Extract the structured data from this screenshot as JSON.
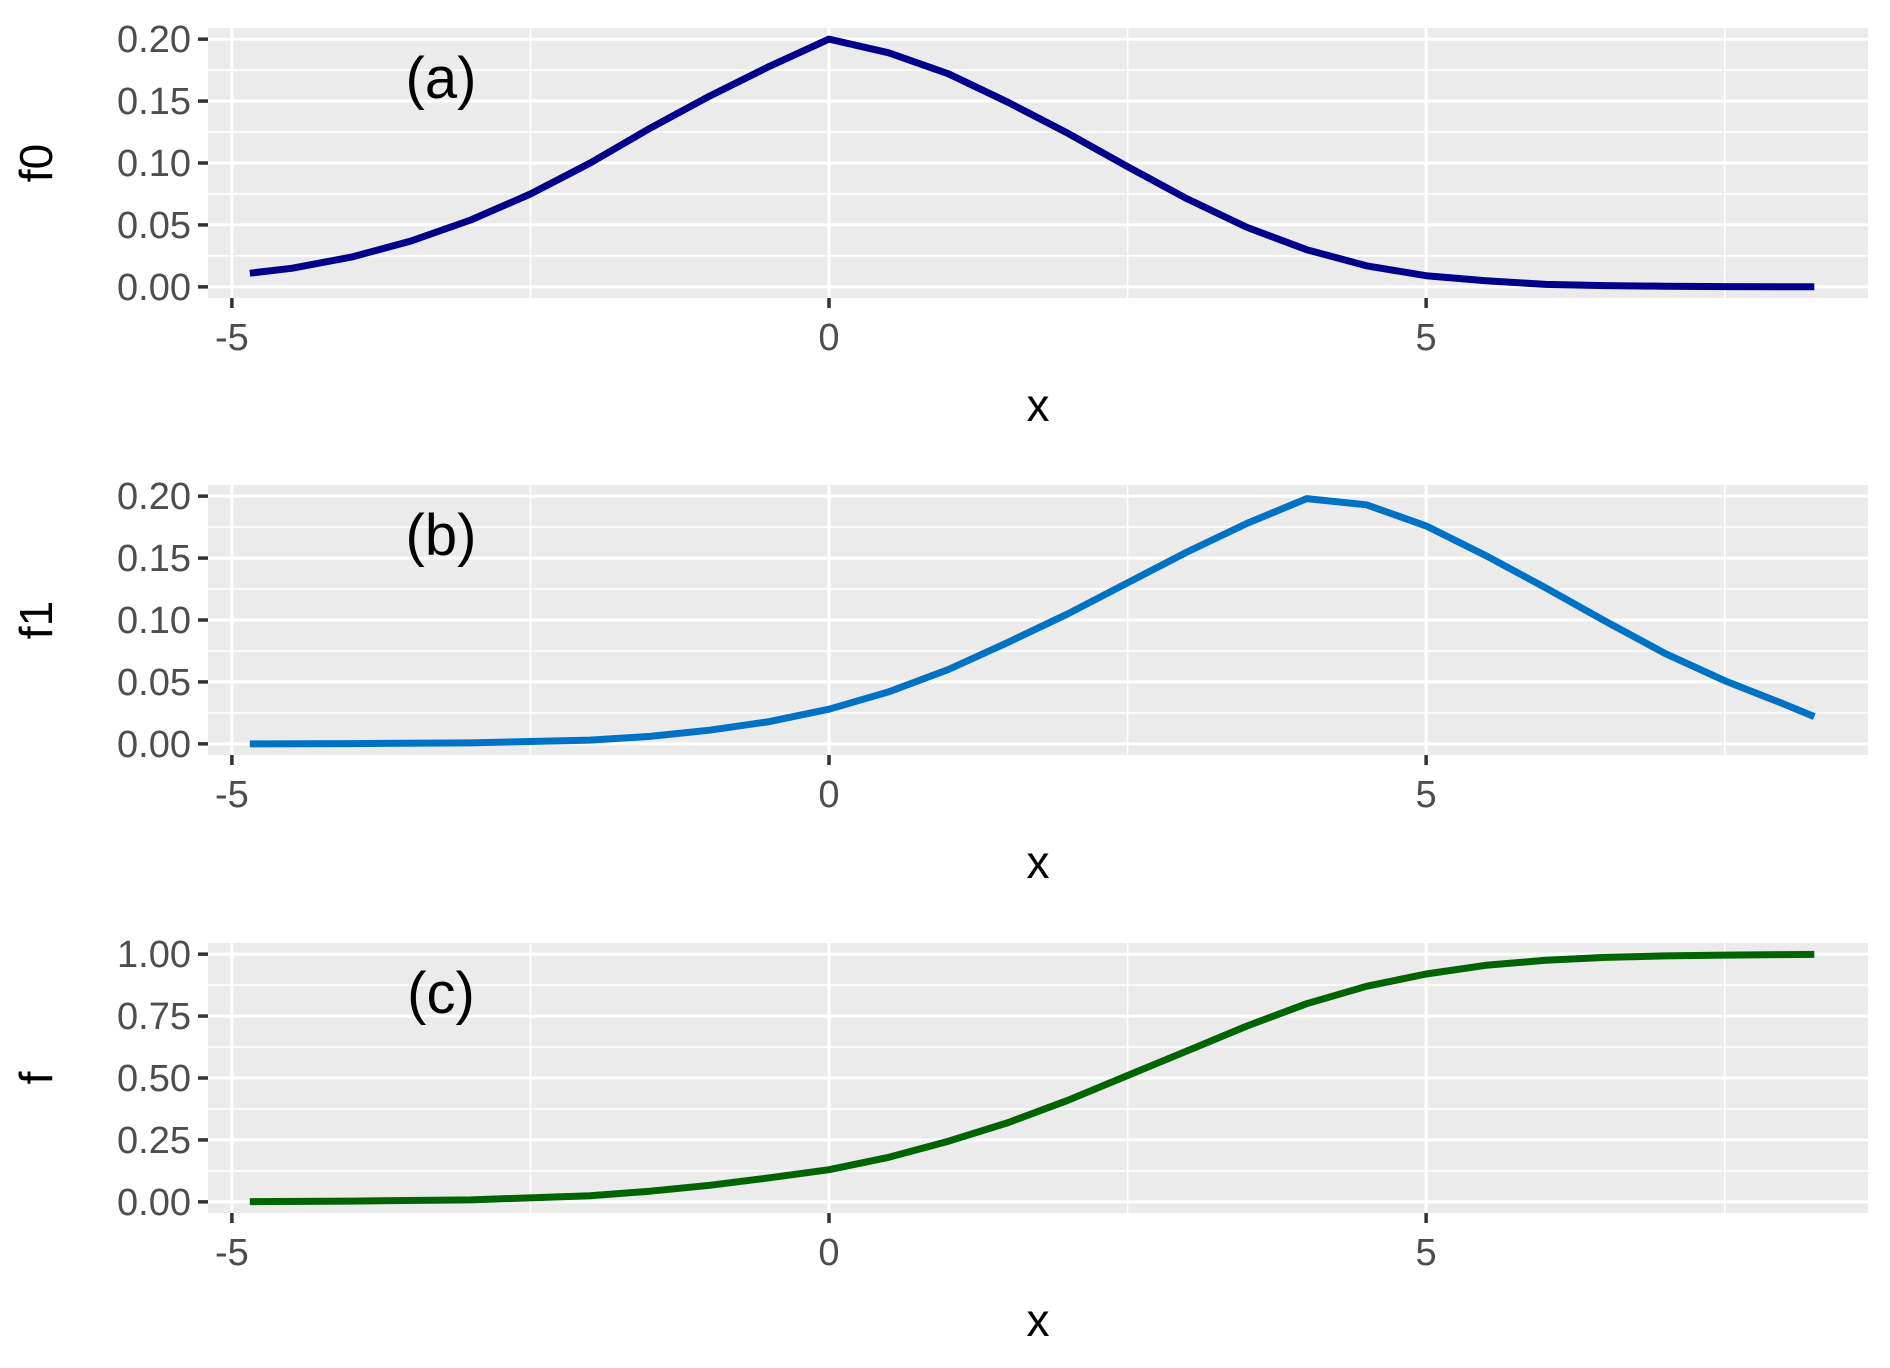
{
  "chart_data": [
    {
      "type": "line",
      "annotation": "(a)",
      "xlabel": "x",
      "ylabel": "f0",
      "xlim": [
        -5.2,
        8.7
      ],
      "ylim": [
        -0.009,
        0.209
      ],
      "x_ticks": [
        -5,
        0,
        5
      ],
      "x_tick_labels": [
        "-5",
        "0",
        "5"
      ],
      "y_ticks": [
        0.0,
        0.05,
        0.1,
        0.15,
        0.2
      ],
      "y_tick_labels": [
        "0.00",
        "0.05",
        "0.10",
        "0.15",
        "0.20"
      ],
      "grid": true,
      "series": [
        {
          "color": "#00008B",
          "x": [
            -4.85,
            -4.5,
            -4.0,
            -3.5,
            -3.0,
            -2.5,
            -2.0,
            -1.5,
            -1.0,
            -0.5,
            0.0,
            0.5,
            1.0,
            1.5,
            2.0,
            2.5,
            3.0,
            3.5,
            4.0,
            4.5,
            5.0,
            5.5,
            6.0,
            6.5,
            7.0,
            7.5,
            8.0,
            8.25
          ],
          "y": [
            0.011,
            0.015,
            0.024,
            0.037,
            0.054,
            0.075,
            0.1,
            0.128,
            0.154,
            0.178,
            0.2,
            0.189,
            0.172,
            0.149,
            0.124,
            0.097,
            0.071,
            0.048,
            0.03,
            0.017,
            0.009,
            0.005,
            0.002,
            0.001,
            0.0005,
            0.0002,
            0.0001,
            0.0001
          ]
        }
      ]
    },
    {
      "type": "line",
      "annotation": "(b)",
      "xlabel": "x",
      "ylabel": "f1",
      "xlim": [
        -5.2,
        8.7
      ],
      "ylim": [
        -0.009,
        0.209
      ],
      "x_ticks": [
        -5,
        0,
        5
      ],
      "x_tick_labels": [
        "-5",
        "0",
        "5"
      ],
      "y_ticks": [
        0.0,
        0.05,
        0.1,
        0.15,
        0.2
      ],
      "y_tick_labels": [
        "0.00",
        "0.05",
        "0.10",
        "0.15",
        "0.20"
      ],
      "grid": true,
      "series": [
        {
          "color": "#0072C6",
          "x": [
            -4.85,
            -4.0,
            -3.0,
            -2.0,
            -1.5,
            -1.0,
            -0.5,
            0.0,
            0.5,
            1.0,
            1.5,
            2.0,
            2.5,
            3.0,
            3.5,
            4.0,
            4.5,
            5.0,
            5.5,
            6.0,
            6.5,
            7.0,
            7.5,
            8.0,
            8.25
          ],
          "y": [
            0.0,
            0.0002,
            0.0008,
            0.003,
            0.006,
            0.011,
            0.018,
            0.028,
            0.042,
            0.06,
            0.082,
            0.105,
            0.13,
            0.155,
            0.178,
            0.198,
            0.193,
            0.176,
            0.152,
            0.126,
            0.099,
            0.073,
            0.051,
            0.032,
            0.022
          ]
        }
      ]
    },
    {
      "type": "line",
      "annotation": "(c)",
      "xlabel": "x",
      "ylabel": "f",
      "xlim": [
        -5.2,
        8.7
      ],
      "ylim": [
        -0.045,
        1.045
      ],
      "x_ticks": [
        -5,
        0,
        5
      ],
      "x_tick_labels": [
        "-5",
        "0",
        "5"
      ],
      "y_ticks": [
        0.0,
        0.25,
        0.5,
        0.75,
        1.0
      ],
      "y_tick_labels": [
        "0.00",
        "0.25",
        "0.50",
        "0.75",
        "1.00"
      ],
      "grid": true,
      "series": [
        {
          "color": "#006400",
          "x": [
            -4.85,
            -4.0,
            -3.0,
            -2.0,
            -1.5,
            -1.0,
            -0.5,
            0.0,
            0.5,
            1.0,
            1.5,
            2.0,
            2.5,
            3.0,
            3.5,
            4.0,
            4.5,
            5.0,
            5.5,
            6.0,
            6.5,
            7.0,
            7.5,
            8.0,
            8.25
          ],
          "y": [
            0.001,
            0.003,
            0.008,
            0.025,
            0.043,
            0.067,
            0.097,
            0.13,
            0.18,
            0.245,
            0.32,
            0.41,
            0.51,
            0.61,
            0.71,
            0.8,
            0.87,
            0.92,
            0.955,
            0.975,
            0.987,
            0.993,
            0.996,
            0.998,
            0.999
          ]
        }
      ]
    }
  ]
}
